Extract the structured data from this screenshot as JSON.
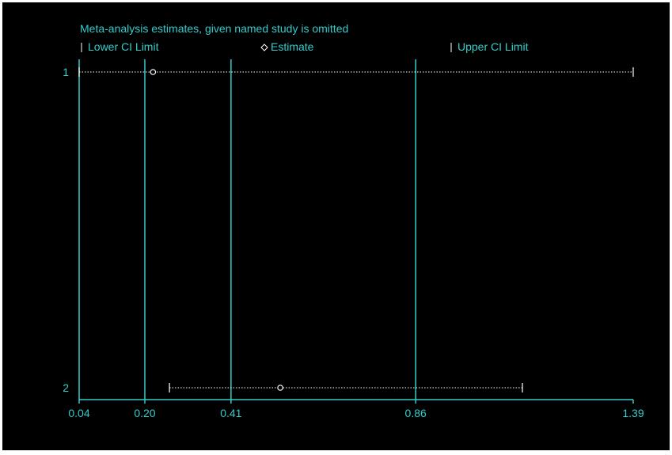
{
  "colors": {
    "background": "#000000",
    "axis": "#33cccc",
    "text": "#33cccc",
    "markers": "#ffffff"
  },
  "chart_data": {
    "type": "forest",
    "title": "Meta-analysis estimates, given named study is omitted",
    "legend": {
      "placement": "top",
      "entries": [
        {
          "symbol": "|",
          "label": "Lower CI Limit"
        },
        {
          "symbol": "◇",
          "label": "Estimate"
        },
        {
          "symbol": "|",
          "label": "Upper CI Limit"
        }
      ]
    },
    "xlim": [
      0.04,
      1.39
    ],
    "x_ticks": [
      {
        "value": 0.04,
        "label": "0.04"
      },
      {
        "value": 0.2,
        "label": "0.20"
      },
      {
        "value": 0.41,
        "label": "0.41"
      },
      {
        "value": 0.86,
        "label": "0.86"
      },
      {
        "value": 1.39,
        "label": "1.39"
      }
    ],
    "reference_lines": [
      0.04,
      0.2,
      0.41,
      0.86
    ],
    "rows": [
      {
        "label": "1",
        "lower": 0.04,
        "estimate": 0.22,
        "upper": 1.39
      },
      {
        "label": "2",
        "lower": 0.26,
        "estimate": 0.53,
        "upper": 1.12
      }
    ]
  }
}
